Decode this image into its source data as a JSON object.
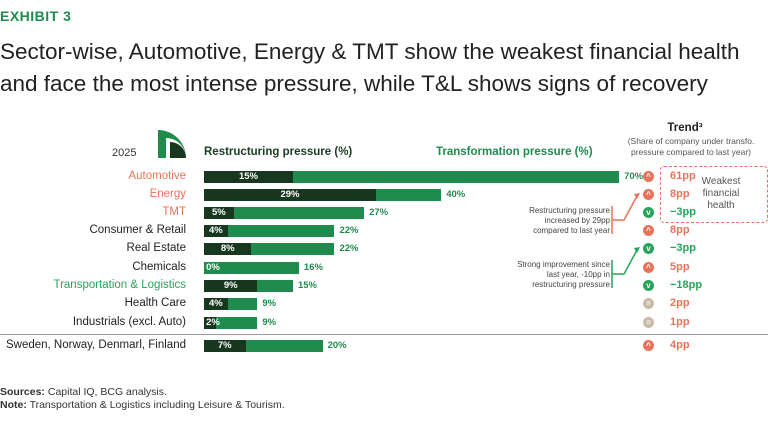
{
  "exhibit": "EXHIBIT 3",
  "title": "Sector-wise, Automotive, Energy & TMT show the weakest financial health and face the most intense pressure, while T&L shows signs of recovery",
  "year": "2025",
  "header_restructuring": "Restructuring pressure (%)",
  "header_transformation": "Transformation pressure (%)",
  "trend_title": "Trend³",
  "trend_subtitle": "(Share of company under transfo. pressure compared to last year)",
  "weakest_label": "Weakest financial health",
  "callout_energy": "Restructuring pressure increased by 29pp compared to last year",
  "callout_tl": "Strong improvement since last year, -10pp in restructuring pressure",
  "colors": {
    "restructuring": "#17381f",
    "transformation": "#1f8c4e",
    "highlight_red": "#e8735a",
    "highlight_green": "#27a35a",
    "neutral": "#c9b9a6"
  },
  "sources_label": "Sources:",
  "sources_text": " Capital IQ, BCG analysis.",
  "note_label": "Note:",
  "note_text": " Transportation & Logistics including Leisure & Tourism.",
  "chart_data": {
    "type": "bar",
    "categories": [
      "Automotive",
      "Energy",
      "TMT",
      "Consumer & Retail",
      "Real Estate",
      "Chemicals",
      "Transportation & Logistics",
      "Health Care",
      "Industrials (excl. Auto)",
      "Sweden, Norway, Denmarl, Finland"
    ],
    "category_highlight": [
      "red",
      "red",
      "red",
      "none",
      "none",
      "none",
      "green",
      "none",
      "none",
      "none"
    ],
    "series": [
      {
        "name": "Restructuring pressure (%)",
        "values": [
          15,
          29,
          5,
          4,
          8,
          0,
          9,
          4,
          2,
          7
        ],
        "labels": [
          "15%",
          "29%",
          "5%",
          "4%",
          "8%",
          "0%",
          "9%",
          "4%",
          "2%",
          "7%"
        ]
      },
      {
        "name": "Transformation pressure (%)",
        "values": [
          70,
          40,
          27,
          22,
          22,
          16,
          15,
          9,
          9,
          20
        ],
        "labels": [
          "70%",
          "40%",
          "27%",
          "22%",
          "22%",
          "16%",
          "15%",
          "9%",
          "9%",
          "20%"
        ]
      }
    ],
    "trend": {
      "values": [
        "61pp",
        "8pp",
        "−3pp",
        "8pp",
        "−3pp",
        "5pp",
        "−18pp",
        "2pp",
        "1pp",
        "4pp"
      ],
      "direction": [
        "up",
        "up",
        "down",
        "up",
        "down",
        "up",
        "down",
        "flat",
        "flat",
        "up"
      ]
    },
    "xlim": [
      0,
      70
    ]
  }
}
